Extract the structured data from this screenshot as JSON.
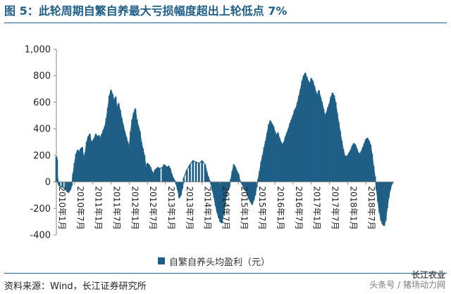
{
  "header": {
    "title": "图 5：此轮周期自繁自养最大亏损幅度超出上轮低点 7%"
  },
  "footer": {
    "source": "资料来源：Wind，长江证券研究所",
    "watermark_line1": "长江农业",
    "watermark_line2": "头条号 / 猪场动力网"
  },
  "colors": {
    "title": "#1f5f86",
    "area": "#1f5f86",
    "axis": "#888888"
  },
  "chart_data": {
    "type": "area",
    "title": "",
    "xlabel": "",
    "ylabel": "",
    "ylim": [
      -400,
      1000
    ],
    "yticks": [
      -400,
      -200,
      0,
      200,
      400,
      600,
      800,
      1000
    ],
    "ytick_labels": [
      "-400",
      "-200",
      "0",
      "200",
      "400",
      "600",
      "800",
      "1,000"
    ],
    "x_tick_labels": [
      "2010年1月",
      "2010年7月",
      "2011年1月",
      "2011年7月",
      "2012年1月",
      "2012年7月",
      "2013年1月",
      "2013年7月",
      "2014年1月",
      "2014年7月",
      "2015年1月",
      "2015年7月",
      "2016年1月",
      "2016年7月",
      "2017年1月",
      "2017年7月",
      "2018年1月",
      "2018年7月"
    ],
    "legend_position": "bottom",
    "grid": false,
    "series": [
      {
        "name": "自繁自养头均盈利（元）",
        "x_unit": "month index from 2010年1月",
        "points": [
          [
            0.0,
            190
          ],
          [
            0.2,
            170
          ],
          [
            0.4,
            20
          ],
          [
            0.6,
            -10
          ],
          [
            0.8,
            -20
          ],
          [
            1.0,
            -30
          ],
          [
            2.0,
            -40
          ],
          [
            3.0,
            -55
          ],
          [
            3.6,
            -75
          ],
          [
            4.0,
            -80
          ],
          [
            4.6,
            -60
          ],
          [
            5.0,
            -30
          ],
          [
            5.5,
            60
          ],
          [
            6.0,
            140
          ],
          [
            6.5,
            210
          ],
          [
            7.0,
            240
          ],
          [
            7.5,
            225
          ],
          [
            8.0,
            250
          ],
          [
            8.5,
            260
          ],
          [
            9.0,
            180
          ],
          [
            9.5,
            220
          ],
          [
            10.0,
            300
          ],
          [
            10.5,
            340
          ],
          [
            11.0,
            360
          ],
          [
            11.5,
            300
          ],
          [
            12.0,
            310
          ],
          [
            12.5,
            330
          ],
          [
            13.0,
            360
          ],
          [
            13.5,
            340
          ],
          [
            14.0,
            350
          ],
          [
            14.5,
            330
          ],
          [
            15.0,
            360
          ],
          [
            15.5,
            390
          ],
          [
            16.0,
            420
          ],
          [
            16.5,
            480
          ],
          [
            17.0,
            560
          ],
          [
            17.5,
            650
          ],
          [
            18.0,
            690
          ],
          [
            18.5,
            660
          ],
          [
            19.0,
            610
          ],
          [
            19.5,
            640
          ],
          [
            20.0,
            560
          ],
          [
            20.5,
            590
          ],
          [
            21.0,
            540
          ],
          [
            21.5,
            480
          ],
          [
            22.0,
            430
          ],
          [
            22.5,
            380
          ],
          [
            23.0,
            340
          ],
          [
            23.5,
            300
          ],
          [
            24.0,
            260
          ],
          [
            24.5,
            380
          ],
          [
            25.0,
            470
          ],
          [
            25.5,
            520
          ],
          [
            26.0,
            550
          ],
          [
            26.5,
            470
          ],
          [
            27.0,
            420
          ],
          [
            27.5,
            380
          ],
          [
            28.0,
            300
          ],
          [
            28.5,
            250
          ],
          [
            29.0,
            200
          ],
          [
            29.5,
            110
          ],
          [
            30.0,
            140
          ],
          [
            30.5,
            130
          ],
          [
            31.0,
            110
          ],
          [
            31.5,
            80
          ],
          [
            32.0,
            60
          ],
          [
            32.5,
            90
          ],
          [
            33.0,
            100
          ],
          [
            33.5,
            110
          ],
          [
            34.0,
            100
          ],
          [
            35.0,
            110
          ],
          [
            35.5,
            130
          ],
          [
            36.0,
            120
          ],
          [
            36.5,
            110
          ],
          [
            37.0,
            120
          ],
          [
            37.5,
            100
          ],
          [
            38.0,
            60
          ],
          [
            38.5,
            30
          ],
          [
            39.0,
            10
          ],
          [
            39.5,
            -20
          ],
          [
            40.0,
            -60
          ],
          [
            40.5,
            -120
          ],
          [
            41.0,
            -100
          ],
          [
            41.5,
            -50
          ],
          [
            42.0,
            30
          ],
          [
            43.0,
            90
          ],
          [
            44.0,
            130
          ],
          [
            45.0,
            160
          ],
          [
            46.0,
            150
          ],
          [
            47.0,
            140
          ],
          [
            48.0,
            160
          ],
          [
            49.0,
            130
          ],
          [
            49.5,
            80
          ],
          [
            50.0,
            40
          ],
          [
            50.5,
            10
          ],
          [
            51.0,
            -20
          ],
          [
            51.5,
            -70
          ],
          [
            52.0,
            -120
          ],
          [
            52.5,
            -180
          ],
          [
            53.0,
            -230
          ],
          [
            53.5,
            -270
          ],
          [
            54.0,
            -300
          ],
          [
            54.5,
            -310
          ],
          [
            55.0,
            -250
          ],
          [
            55.5,
            -180
          ],
          [
            56.0,
            -110
          ],
          [
            56.5,
            -60
          ],
          [
            57.0,
            -40
          ],
          [
            57.5,
            20
          ],
          [
            58.0,
            80
          ],
          [
            58.5,
            130
          ],
          [
            59.0,
            110
          ],
          [
            59.5,
            80
          ],
          [
            60.0,
            60
          ],
          [
            60.5,
            10
          ],
          [
            61.0,
            -10
          ],
          [
            61.5,
            -30
          ],
          [
            62.0,
            -50
          ],
          [
            62.5,
            -70
          ],
          [
            63.0,
            -100
          ],
          [
            63.5,
            -130
          ],
          [
            64.0,
            -150
          ],
          [
            64.5,
            -170
          ],
          [
            65.0,
            -140
          ],
          [
            65.5,
            -100
          ],
          [
            66.0,
            -40
          ],
          [
            66.5,
            20
          ],
          [
            67.0,
            80
          ],
          [
            67.5,
            150
          ],
          [
            68.0,
            200
          ],
          [
            68.5,
            260
          ],
          [
            69.0,
            310
          ],
          [
            69.5,
            370
          ],
          [
            70.0,
            430
          ],
          [
            70.5,
            460
          ],
          [
            71.0,
            440
          ],
          [
            71.5,
            420
          ],
          [
            72.0,
            380
          ],
          [
            72.5,
            350
          ],
          [
            73.0,
            370
          ],
          [
            73.5,
            330
          ],
          [
            74.0,
            300
          ],
          [
            74.5,
            280
          ],
          [
            75.0,
            300
          ],
          [
            75.5,
            340
          ],
          [
            76.0,
            370
          ],
          [
            76.5,
            400
          ],
          [
            77.0,
            440
          ],
          [
            77.5,
            470
          ],
          [
            78.0,
            500
          ],
          [
            78.5,
            540
          ],
          [
            79.0,
            560
          ],
          [
            79.5,
            600
          ],
          [
            80.0,
            650
          ],
          [
            80.5,
            700
          ],
          [
            81.0,
            760
          ],
          [
            81.5,
            800
          ],
          [
            82.0,
            820
          ],
          [
            82.5,
            790
          ],
          [
            83.0,
            760
          ],
          [
            83.5,
            740
          ],
          [
            84.0,
            780
          ],
          [
            84.5,
            760
          ],
          [
            85.0,
            720
          ],
          [
            85.5,
            680
          ],
          [
            86.0,
            650
          ],
          [
            86.5,
            690
          ],
          [
            87.0,
            640
          ],
          [
            87.5,
            600
          ],
          [
            88.0,
            550
          ],
          [
            88.5,
            500
          ],
          [
            89.0,
            520
          ],
          [
            89.5,
            560
          ],
          [
            90.0,
            590
          ],
          [
            90.5,
            640
          ],
          [
            91.0,
            670
          ],
          [
            91.5,
            650
          ],
          [
            92.0,
            600
          ],
          [
            92.5,
            520
          ],
          [
            93.0,
            450
          ],
          [
            93.5,
            380
          ],
          [
            94.0,
            310
          ],
          [
            94.5,
            250
          ],
          [
            95.0,
            200
          ],
          [
            95.5,
            190
          ],
          [
            96.0,
            200
          ],
          [
            96.5,
            220
          ],
          [
            97.0,
            240
          ],
          [
            97.5,
            270
          ],
          [
            98.0,
            290
          ],
          [
            98.5,
            280
          ],
          [
            99.0,
            250
          ],
          [
            99.5,
            220
          ],
          [
            100.0,
            210
          ],
          [
            100.5,
            230
          ],
          [
            101.0,
            260
          ],
          [
            101.5,
            290
          ],
          [
            102.0,
            320
          ],
          [
            102.5,
            330
          ],
          [
            103.0,
            310
          ],
          [
            103.5,
            280
          ],
          [
            104.0,
            210
          ],
          [
            104.5,
            120
          ],
          [
            105.0,
            40
          ],
          [
            105.5,
            -60
          ],
          [
            106.0,
            -150
          ],
          [
            106.5,
            -230
          ],
          [
            107.0,
            -290
          ],
          [
            107.5,
            -320
          ],
          [
            108.0,
            -330
          ],
          [
            108.5,
            -290
          ],
          [
            109.0,
            -200
          ],
          [
            109.5,
            -120
          ],
          [
            110.0,
            -60
          ],
          [
            110.5,
            -20
          ],
          [
            111.0,
            0
          ]
        ]
      }
    ]
  }
}
